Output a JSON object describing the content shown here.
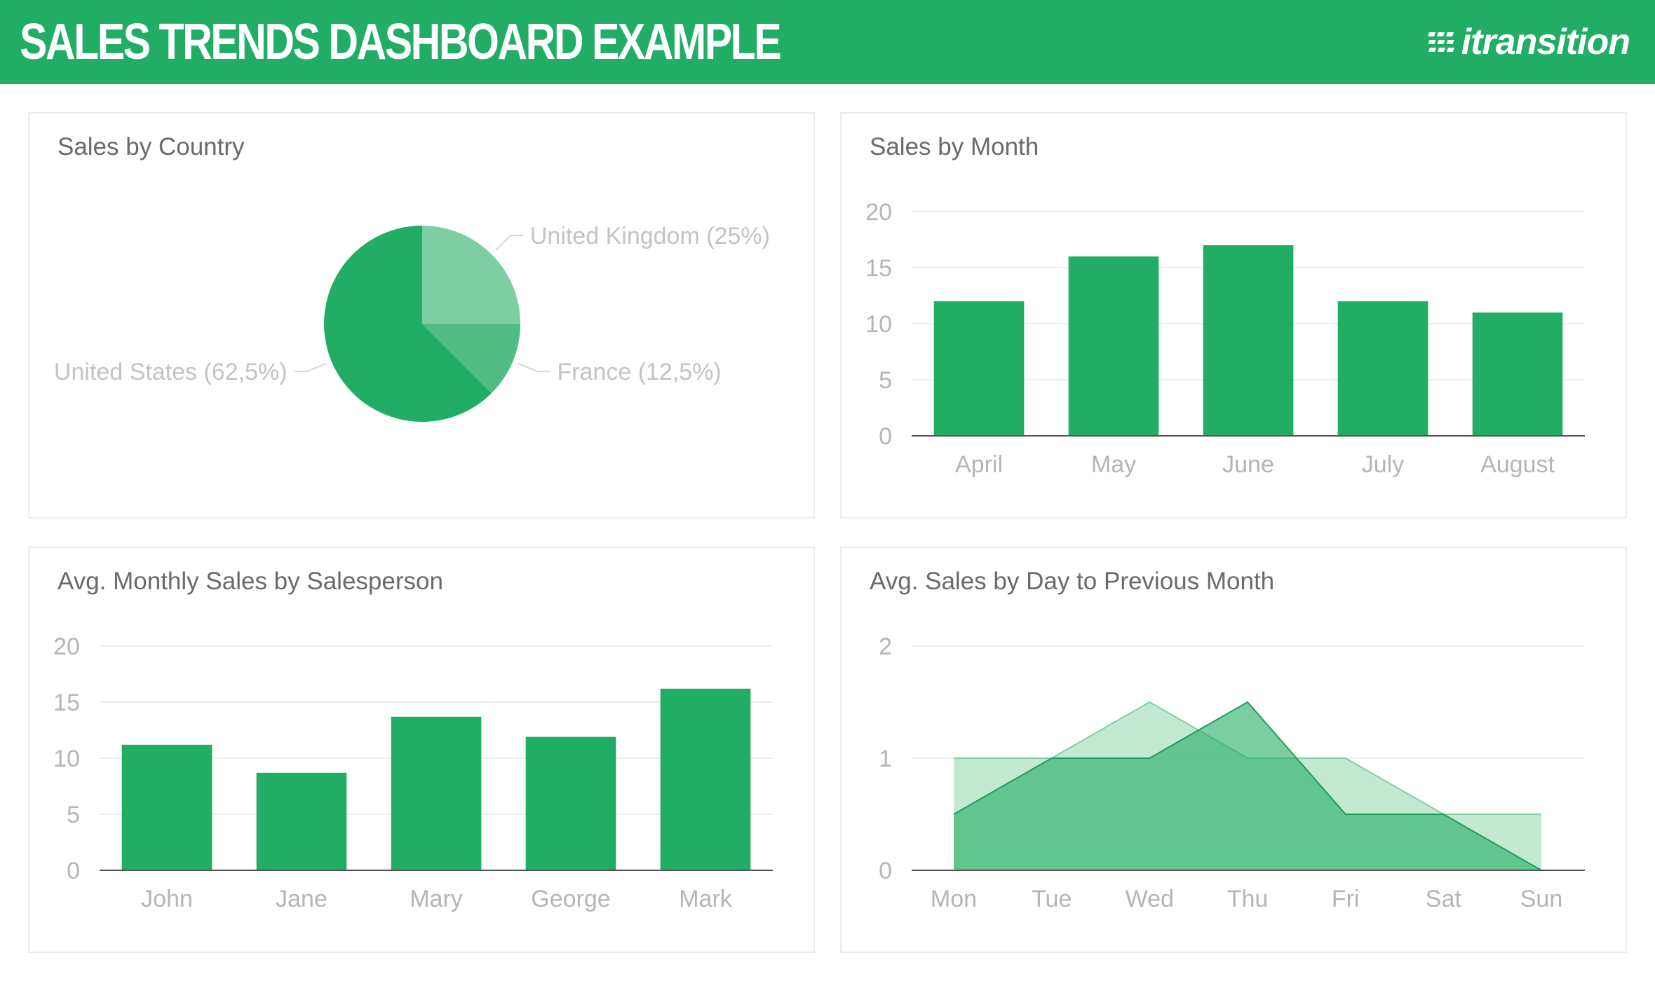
{
  "header": {
    "title": "SALES TRENDS DASHBOARD EXAMPLE",
    "logo_text": "itransition",
    "background": "#21ad64"
  },
  "colors": {
    "bar": "#21ad64",
    "pie_primary": "#21ad64",
    "pie_secondary": "#7dcfa2",
    "pie_tertiary": "#4fbd82",
    "area_dark": "#21ad64",
    "area_light": "#b9e5cb"
  },
  "panels": {
    "country": {
      "title": "Sales by Country"
    },
    "month": {
      "title": "Sales by Month"
    },
    "salesperson": {
      "title": "Avg. Monthly Sales by Salesperson"
    },
    "day": {
      "title": "Avg. Sales by Day to Previous Month"
    }
  },
  "chart_data": [
    {
      "id": "country",
      "type": "pie",
      "title": "Sales by Country",
      "slices": [
        {
          "label": "United Kingdom (25%)",
          "value": 25,
          "color": "#7dcfa2"
        },
        {
          "label": "France (12,5%)",
          "value": 12.5,
          "color": "#4fbd82"
        },
        {
          "label": "United States (62,5%)",
          "value": 62.5,
          "color": "#21ad64"
        }
      ]
    },
    {
      "id": "month",
      "type": "bar",
      "title": "Sales by Month",
      "categories": [
        "April",
        "May",
        "June",
        "July",
        "August"
      ],
      "values": [
        12,
        16,
        17,
        12,
        11
      ],
      "yticks": [
        "0",
        "5",
        "10",
        "15",
        "20"
      ],
      "ylim": [
        0,
        20
      ],
      "grid": true
    },
    {
      "id": "salesperson",
      "type": "bar",
      "title": "Avg. Monthly Sales by Salesperson",
      "categories": [
        "John",
        "Jane",
        "Mary",
        "George",
        "Mark"
      ],
      "values": [
        11.2,
        8.7,
        13.7,
        11.9,
        16.2
      ],
      "yticks": [
        "0",
        "5",
        "10",
        "15",
        "20"
      ],
      "ylim": [
        0,
        20
      ],
      "grid": true
    },
    {
      "id": "day",
      "type": "area",
      "title": "Avg. Sales by Day to Previous Month",
      "categories": [
        "Mon",
        "Tue",
        "Wed",
        "Thu",
        "Fri",
        "Sat",
        "Sun"
      ],
      "series": [
        {
          "values": [
            1,
            1,
            1.5,
            1,
            1,
            0.5,
            0.5
          ],
          "color": "#b9e5cb"
        },
        {
          "values": [
            0.5,
            1,
            1,
            1.5,
            0.5,
            0.5,
            0
          ],
          "color": "#21ad64"
        }
      ],
      "yticks": [
        "0",
        "1",
        "2"
      ],
      "ylim": [
        0,
        2
      ],
      "grid": true
    }
  ]
}
